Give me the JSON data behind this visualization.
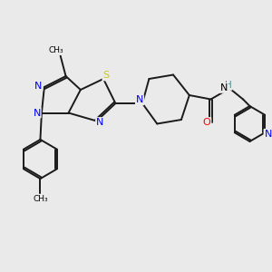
{
  "bg_color": "#eaeaea",
  "bond_color": "#1a1a1a",
  "N_color": "#0000ff",
  "S_color": "#cccc00",
  "O_color": "#ff0000",
  "H_color": "#4a9090",
  "bond_width": 1.4,
  "figsize": [
    3.0,
    3.0
  ],
  "dpi": 100,
  "xlim": [
    0,
    10
  ],
  "ylim": [
    0,
    10
  ]
}
